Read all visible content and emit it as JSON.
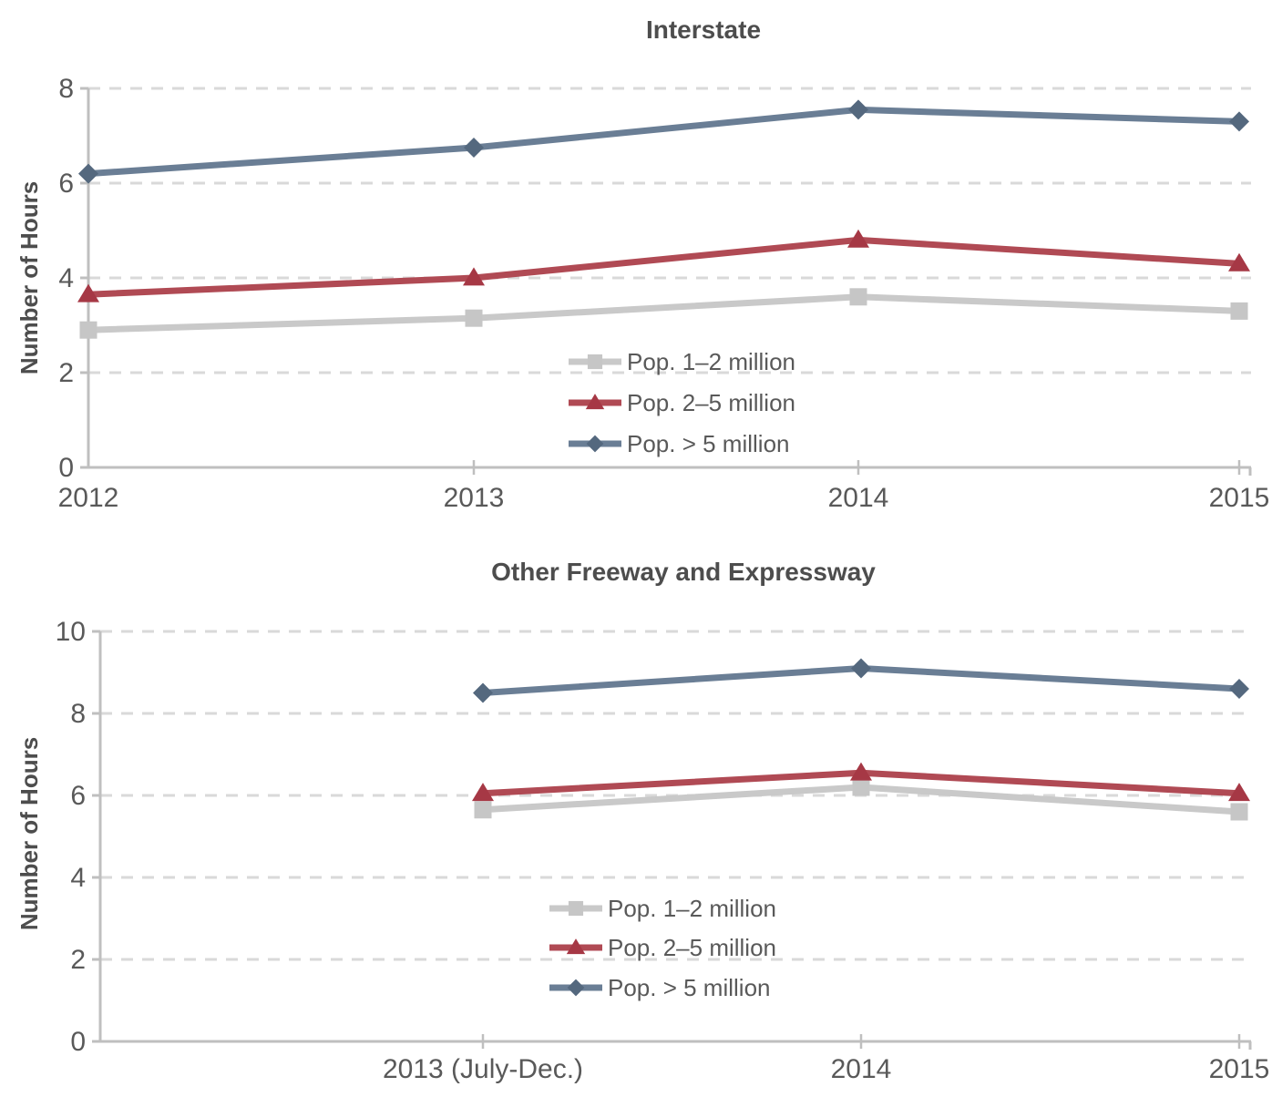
{
  "page": {
    "background": "#FFFFFF"
  },
  "colors": {
    "text": "#595959",
    "title_text": "#4D4D4D",
    "axis": "#BFBFBF",
    "gridline": "#D9D9D9"
  },
  "chart_data": [
    {
      "type": "line",
      "title": "Interstate",
      "ylabel": "Number of Hours",
      "xlabel": "",
      "x_categories": [
        "2012",
        "2013",
        "2014",
        "2015"
      ],
      "ylim": [
        0,
        8
      ],
      "ytick_interval": 2,
      "ytick_labels": [
        "0",
        "2",
        "4",
        "6",
        "8"
      ],
      "grid": "horizontal-dashed",
      "legend_position": "inside-center",
      "series": [
        {
          "name": "Pop. 1–2 million",
          "marker": "square",
          "line_color": "#C9C9C9",
          "marker_color": "#C6C6C6",
          "values": [
            2.9,
            3.15,
            3.6,
            3.3
          ]
        },
        {
          "name": "Pop. 2–5 million",
          "marker": "triangle",
          "line_color": "#B04A54",
          "marker_color": "#A63845",
          "values": [
            3.65,
            4.0,
            4.8,
            4.3
          ]
        },
        {
          "name": "Pop. > 5 million",
          "marker": "diamond",
          "line_color": "#6A7E95",
          "marker_color": "#54687E",
          "values": [
            6.2,
            6.75,
            7.55,
            7.3
          ]
        }
      ]
    },
    {
      "type": "line",
      "title": "Other Freeway and Expressway",
      "ylabel": "Number of Hours",
      "xlabel": "",
      "x_categories": [
        "2013 (July-Dec.)",
        "2014",
        "2015"
      ],
      "ylim": [
        0,
        10
      ],
      "ytick_interval": 2,
      "ytick_labels": [
        "0",
        "2",
        "4",
        "6",
        "8",
        "10"
      ],
      "grid": "horizontal-dashed",
      "legend_position": "inside-center",
      "series": [
        {
          "name": "Pop. 1–2 million",
          "marker": "square",
          "line_color": "#C9C9C9",
          "marker_color": "#C6C6C6",
          "values": [
            5.65,
            6.2,
            5.6
          ]
        },
        {
          "name": "Pop. 2–5 million",
          "marker": "triangle",
          "line_color": "#B04A54",
          "marker_color": "#A63845",
          "values": [
            6.05,
            6.55,
            6.05
          ]
        },
        {
          "name": "Pop. > 5 million",
          "marker": "diamond",
          "line_color": "#6A7E95",
          "marker_color": "#54687E",
          "values": [
            8.5,
            9.1,
            8.6
          ]
        }
      ]
    }
  ]
}
